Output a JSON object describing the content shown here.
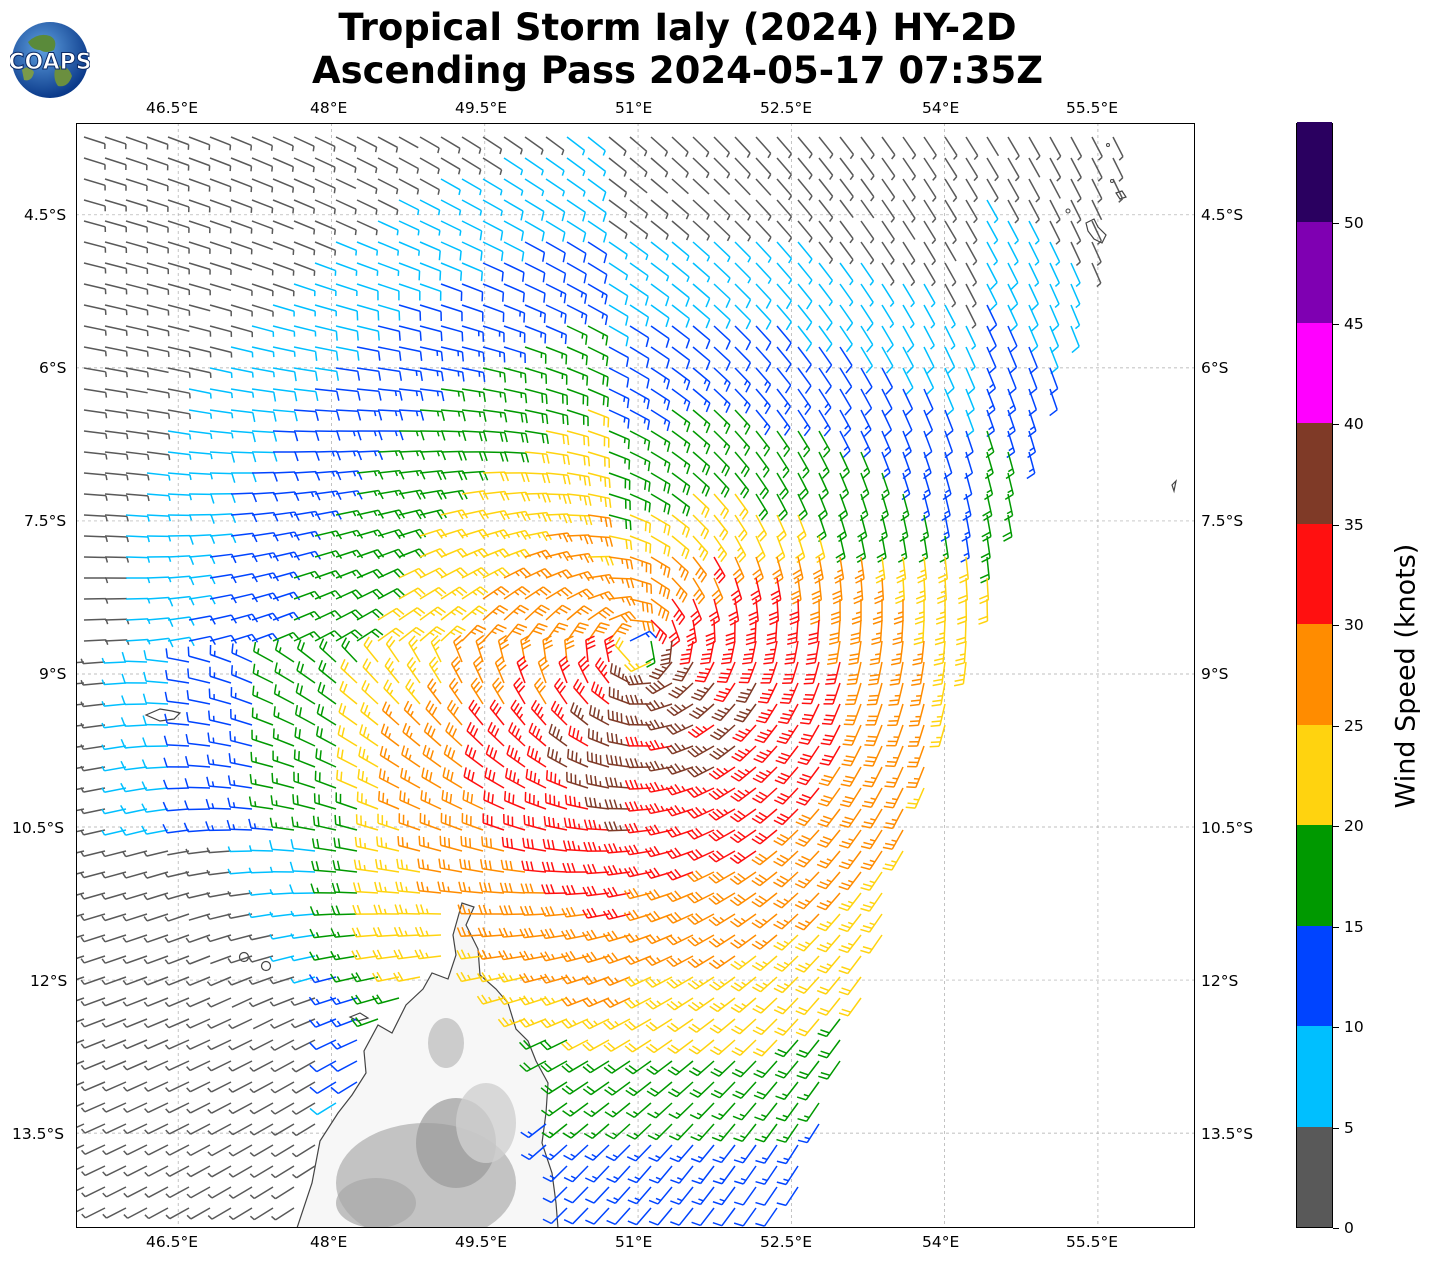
{
  "title": {
    "line1": "Tropical Storm Ialy (2024) HY-2D",
    "line2": "Ascending Pass 2024-05-17 07:35Z"
  },
  "logo": {
    "text": "COAPS"
  },
  "map": {
    "lon_range": [
      45.5,
      56.45
    ],
    "lat_range": [
      -14.43,
      -3.6
    ],
    "lon_ticks": [
      "46.5°E",
      "48°E",
      "49.5°E",
      "51°E",
      "52.5°E",
      "54°E",
      "55.5°E"
    ],
    "lat_ticks": [
      "4.5°S",
      "6°S",
      "7.5°S",
      "9°S",
      "10.5°S",
      "12°S",
      "13.5°S"
    ],
    "storm_center": {
      "lon": 51.0,
      "lat": -8.75
    },
    "gridlines": true,
    "land": [
      "Madagascar (north tip)",
      "Comoros islands",
      "Seychelles islands"
    ]
  },
  "colorbar": {
    "label": "Wind Speed (knots)",
    "ticks": [
      "0",
      "5",
      "10",
      "15",
      "20",
      "25",
      "30",
      "35",
      "40",
      "45",
      "50"
    ],
    "bins": [
      {
        "range": [
          0,
          5
        ],
        "color": "#595959"
      },
      {
        "range": [
          5,
          10
        ],
        "color": "#00bfff"
      },
      {
        "range": [
          10,
          15
        ],
        "color": "#0044ff"
      },
      {
        "range": [
          15,
          20
        ],
        "color": "#009900"
      },
      {
        "range": [
          20,
          25
        ],
        "color": "#ffd30f"
      },
      {
        "range": [
          25,
          30
        ],
        "color": "#ff8c00"
      },
      {
        "range": [
          30,
          35
        ],
        "color": "#ff1010"
      },
      {
        "range": [
          35,
          40
        ],
        "color": "#7f3a27"
      },
      {
        "range": [
          40,
          45
        ],
        "color": "#ff00ff"
      },
      {
        "range": [
          45,
          50
        ],
        "color": "#7f00b2"
      },
      {
        "range": [
          50,
          55
        ],
        "color": "#2a0060"
      }
    ]
  }
}
